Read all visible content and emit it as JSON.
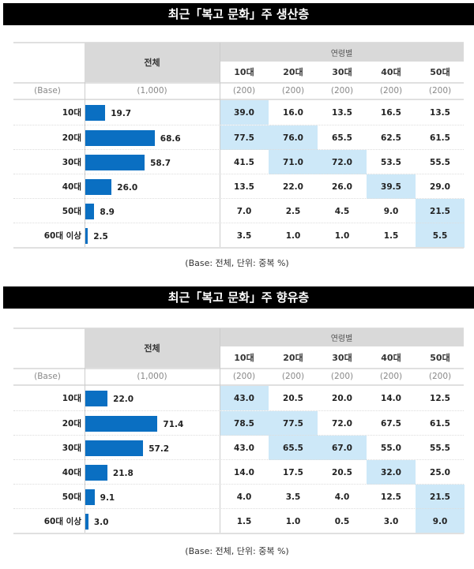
{
  "chart_data": [
    {
      "type": "table",
      "title": "최근「복고 문화」주 생산층",
      "total_header": "전체",
      "group_header": "연령별",
      "columns": [
        "10대",
        "20대",
        "30대",
        "40대",
        "50대"
      ],
      "base_label": "(Base)",
      "base_total": "(1,000)",
      "base_cols": [
        "(200)",
        "(200)",
        "(200)",
        "(200)",
        "(200)"
      ],
      "rows": [
        {
          "label": "10대",
          "total": "19.7",
          "values": [
            "39.0",
            "16.0",
            "13.5",
            "16.5",
            "13.5"
          ],
          "highlight": [
            0
          ]
        },
        {
          "label": "20대",
          "total": "68.6",
          "values": [
            "77.5",
            "76.0",
            "65.5",
            "62.5",
            "61.5"
          ],
          "highlight": [
            0,
            1
          ]
        },
        {
          "label": "30대",
          "total": "58.7",
          "values": [
            "41.5",
            "71.0",
            "72.0",
            "53.5",
            "55.5"
          ],
          "highlight": [
            1,
            2
          ]
        },
        {
          "label": "40대",
          "total": "26.0",
          "values": [
            "13.5",
            "22.0",
            "26.0",
            "39.5",
            "29.0"
          ],
          "highlight": [
            3
          ]
        },
        {
          "label": "50대",
          "total": "8.9",
          "values": [
            "7.0",
            "2.5",
            "4.5",
            "9.0",
            "21.5"
          ],
          "highlight": [
            4
          ]
        },
        {
          "label": "60대 이상",
          "total": "2.5",
          "values": [
            "3.5",
            "1.0",
            "1.0",
            "1.5",
            "5.5"
          ],
          "highlight": [
            4
          ]
        }
      ],
      "footnote": "(Base: 전체, 단위: 중복 %)"
    },
    {
      "type": "table",
      "title": "최근「복고 문화」주 향유층",
      "total_header": "전체",
      "group_header": "연령별",
      "columns": [
        "10대",
        "20대",
        "30대",
        "40대",
        "50대"
      ],
      "base_label": "(Base)",
      "base_total": "(1,000)",
      "base_cols": [
        "(200)",
        "(200)",
        "(200)",
        "(200)",
        "(200)"
      ],
      "rows": [
        {
          "label": "10대",
          "total": "22.0",
          "values": [
            "43.0",
            "20.5",
            "20.0",
            "14.0",
            "12.5"
          ],
          "highlight": [
            0
          ]
        },
        {
          "label": "20대",
          "total": "71.4",
          "values": [
            "78.5",
            "77.5",
            "72.0",
            "67.5",
            "61.5"
          ],
          "highlight": [
            0,
            1
          ]
        },
        {
          "label": "30대",
          "total": "57.2",
          "values": [
            "43.0",
            "65.5",
            "67.0",
            "55.0",
            "55.5"
          ],
          "highlight": [
            1,
            2
          ]
        },
        {
          "label": "40대",
          "total": "21.8",
          "values": [
            "14.0",
            "17.5",
            "20.5",
            "32.0",
            "25.0"
          ],
          "highlight": [
            3
          ]
        },
        {
          "label": "50대",
          "total": "9.1",
          "values": [
            "4.0",
            "3.5",
            "4.0",
            "12.5",
            "21.5"
          ],
          "highlight": [
            4
          ]
        },
        {
          "label": "60대 이상",
          "total": "3.0",
          "values": [
            "1.5",
            "1.0",
            "0.5",
            "3.0",
            "9.0"
          ],
          "highlight": [
            4
          ]
        }
      ],
      "footnote": "(Base: 전체, 단위: 중복 %)"
    }
  ],
  "colors": {
    "bar": "#0a6fc2",
    "highlight": "#cde8f8",
    "header": "#d9d9d9",
    "title_bg": "#000000"
  }
}
